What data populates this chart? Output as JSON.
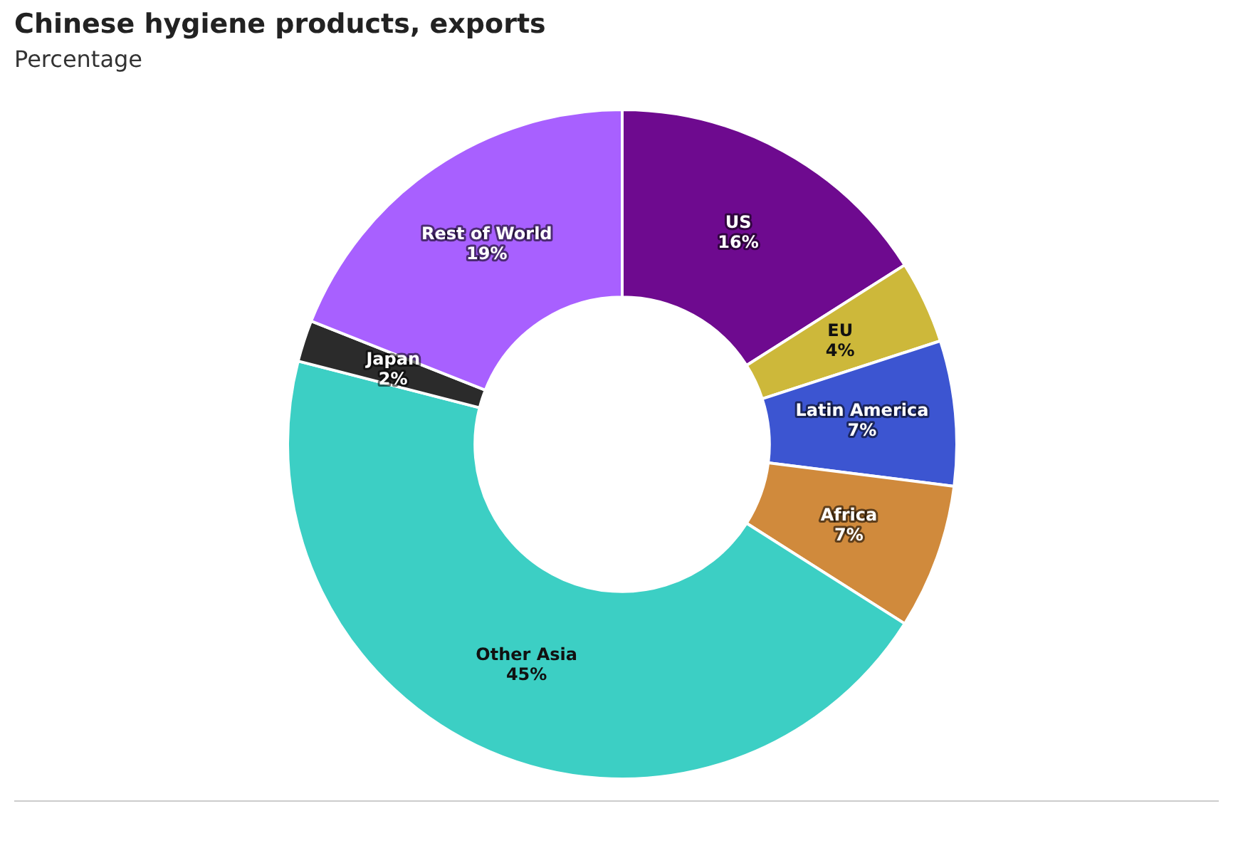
{
  "chart_data": {
    "type": "donut",
    "title": "Chinese hygiene products, exports",
    "subtitle": "Percentage",
    "categories": [
      "US",
      "EU",
      "Latin America",
      "Africa",
      "Other Asia",
      "Japan",
      "Rest of World"
    ],
    "values": [
      16,
      4,
      7,
      7,
      45,
      2,
      19
    ],
    "colors": [
      "#6e0a8f",
      "#cdb83a",
      "#3c55d1",
      "#d08a3c",
      "#3ccfc4",
      "#2b2b2b",
      "#a860ff"
    ],
    "value_labels": [
      "16%",
      "4%",
      "7%",
      "7%",
      "45%",
      "2%",
      "19%"
    ],
    "legend": false
  }
}
